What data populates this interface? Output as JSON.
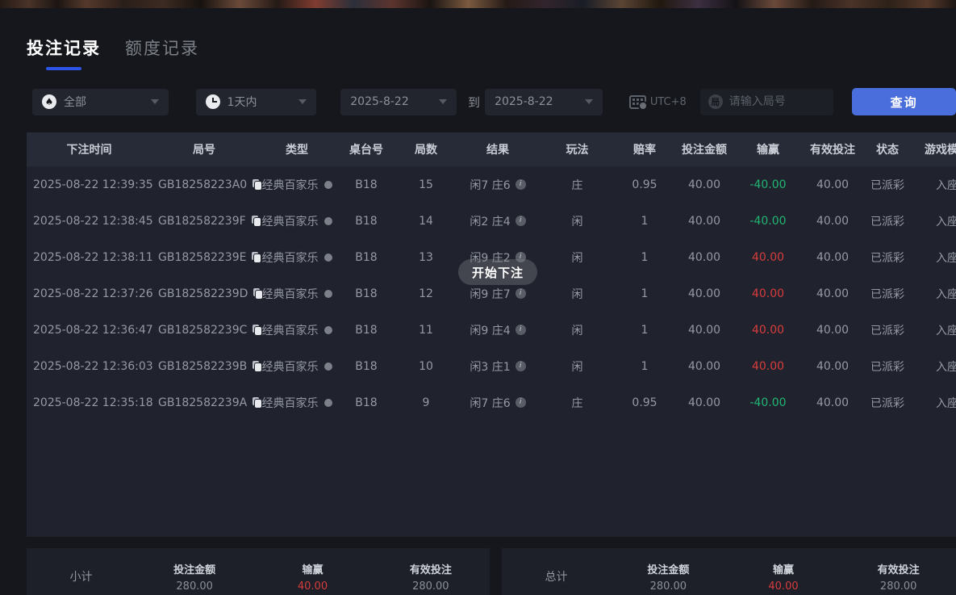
{
  "tabs": [
    {
      "label": "投注记录",
      "active": true
    },
    {
      "label": "额度记录",
      "active": false
    }
  ],
  "filters": {
    "game_type_value": "全部",
    "time_range_value": "1天内",
    "date_from": "2025-8-22",
    "to_label": "到",
    "date_to": "2025-8-22",
    "timezone": "UTC+8",
    "round_input_placeholder": "请输入局号",
    "round_icon_char": "局",
    "query_button": "查询"
  },
  "table": {
    "columns": [
      "下注时间",
      "局号",
      "类型",
      "桌台号",
      "局数",
      "结果",
      "玩法",
      "赔率",
      "投注金额",
      "输赢",
      "有效投注",
      "状态",
      "游戏模式"
    ],
    "rows": [
      {
        "time": "2025-08-22 12:39:35",
        "round_id": "GB18258223A0",
        "type": "经典百家乐",
        "table_no": "B18",
        "round_count": "15",
        "result": "闲7 庄6",
        "play": "庄",
        "odds": "0.95",
        "bet_amount": "40.00",
        "win_loss": "-40.00",
        "valid_bet": "40.00",
        "status": "已派彩",
        "game_mode": "入座"
      },
      {
        "time": "2025-08-22 12:38:45",
        "round_id": "GB182582239F",
        "type": "经典百家乐",
        "table_no": "B18",
        "round_count": "14",
        "result": "闲2 庄4",
        "play": "闲",
        "odds": "1",
        "bet_amount": "40.00",
        "win_loss": "-40.00",
        "valid_bet": "40.00",
        "status": "已派彩",
        "game_mode": "入座"
      },
      {
        "time": "2025-08-22 12:38:11",
        "round_id": "GB182582239E",
        "type": "经典百家乐",
        "table_no": "B18",
        "round_count": "13",
        "result": "闲9 庄2",
        "play": "闲",
        "odds": "1",
        "bet_amount": "40.00",
        "win_loss": "40.00",
        "valid_bet": "40.00",
        "status": "已派彩",
        "game_mode": "入座"
      },
      {
        "time": "2025-08-22 12:37:26",
        "round_id": "GB182582239D",
        "type": "经典百家乐",
        "table_no": "B18",
        "round_count": "12",
        "result": "闲9 庄7",
        "play": "闲",
        "odds": "1",
        "bet_amount": "40.00",
        "win_loss": "40.00",
        "valid_bet": "40.00",
        "status": "已派彩",
        "game_mode": "入座"
      },
      {
        "time": "2025-08-22 12:36:47",
        "round_id": "GB182582239C",
        "type": "经典百家乐",
        "table_no": "B18",
        "round_count": "11",
        "result": "闲9 庄4",
        "play": "闲",
        "odds": "1",
        "bet_amount": "40.00",
        "win_loss": "40.00",
        "valid_bet": "40.00",
        "status": "已派彩",
        "game_mode": "入座"
      },
      {
        "time": "2025-08-22 12:36:03",
        "round_id": "GB182582239B",
        "type": "经典百家乐",
        "table_no": "B18",
        "round_count": "10",
        "result": "闲3 庄1",
        "play": "闲",
        "odds": "1",
        "bet_amount": "40.00",
        "win_loss": "40.00",
        "valid_bet": "40.00",
        "status": "已派彩",
        "game_mode": "入座"
      },
      {
        "time": "2025-08-22 12:35:18",
        "round_id": "GB182582239A",
        "type": "经典百家乐",
        "table_no": "B18",
        "round_count": "9",
        "result": "闲7 庄6",
        "play": "庄",
        "odds": "0.95",
        "bet_amount": "40.00",
        "win_loss": "-40.00",
        "valid_bet": "40.00",
        "status": "已派彩",
        "game_mode": "入座"
      }
    ]
  },
  "toast": {
    "label": "开始下注"
  },
  "summary": {
    "subtotal": {
      "title": "小计",
      "bet_amount_label": "投注金额",
      "bet_amount": "280.00",
      "win_loss_label": "输赢",
      "win_loss": "40.00",
      "valid_bet_label": "有效投注",
      "valid_bet": "280.00"
    },
    "total": {
      "title": "总计",
      "bet_amount_label": "投注金额",
      "bet_amount": "280.00",
      "win_loss_label": "输赢",
      "win_loss": "40.00",
      "valid_bet_label": "有效投注",
      "valid_bet": "280.00"
    }
  },
  "icons": {
    "game_type_filter": "spade-icon",
    "time_filter": "clock-icon",
    "timezone": "calendar-clock-icon"
  },
  "colors": {
    "accent_blue": "#4a6edb",
    "tab_underline_blue": "#2d54e6",
    "positive_red": "#d73c3c",
    "negative_green": "#21b573",
    "table_header_bg": "#272b37",
    "table_body_bg": "#20232d",
    "page_bg": "#15171c"
  }
}
